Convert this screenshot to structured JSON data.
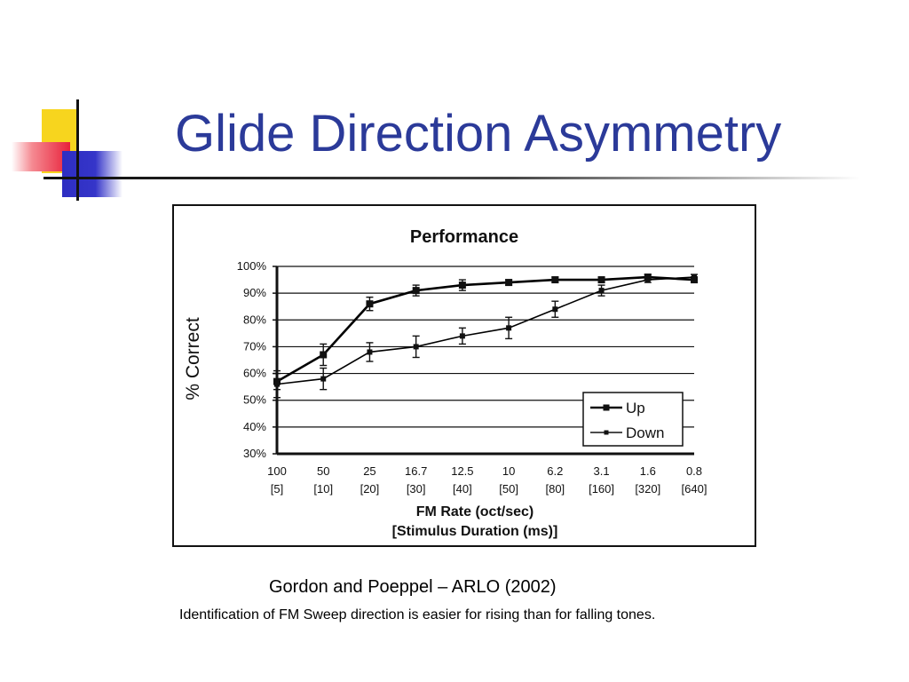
{
  "slide": {
    "title": "Glide Direction Asymmetry",
    "citation": "Gordon and Poeppel – ARLO (2002)",
    "caption": "Identification of FM Sweep direction is easier for rising than for falling tones."
  },
  "colors": {
    "title": "#2b3a99",
    "series": "#000000"
  },
  "chart_data": {
    "type": "line",
    "title": "Performance",
    "xlabel": [
      "FM Rate (oct/sec)",
      "[Stimulus Duration (ms)]"
    ],
    "ylabel": "% Correct",
    "categories": [
      "100",
      "50",
      "25",
      "16.7",
      "12.5",
      "10",
      "6.2",
      "3.1",
      "1.6",
      "0.8"
    ],
    "categories_sub": [
      "[5]",
      "[10]",
      "[20]",
      "[30]",
      "[40]",
      "[50]",
      "[80]",
      "[160]",
      "[320]",
      "[640]"
    ],
    "ylim": [
      30,
      100
    ],
    "yticks": [
      "30%",
      "40%",
      "50%",
      "60%",
      "70%",
      "80%",
      "90%",
      "100%"
    ],
    "grid": true,
    "legend_position": "bottom-right",
    "series": [
      {
        "name": "Up",
        "marker": "square",
        "values": [
          57,
          67,
          86,
          91,
          93,
          94,
          95,
          95,
          96,
          95
        ],
        "errors": [
          3,
          4,
          2.5,
          2,
          2,
          1,
          1,
          1,
          1,
          1
        ]
      },
      {
        "name": "Down",
        "marker": "square",
        "values": [
          56,
          58,
          68,
          70,
          74,
          77,
          84,
          91,
          95,
          96
        ],
        "errors": [
          5,
          4,
          3.5,
          4,
          3,
          4,
          3,
          2,
          1,
          1
        ]
      }
    ]
  }
}
